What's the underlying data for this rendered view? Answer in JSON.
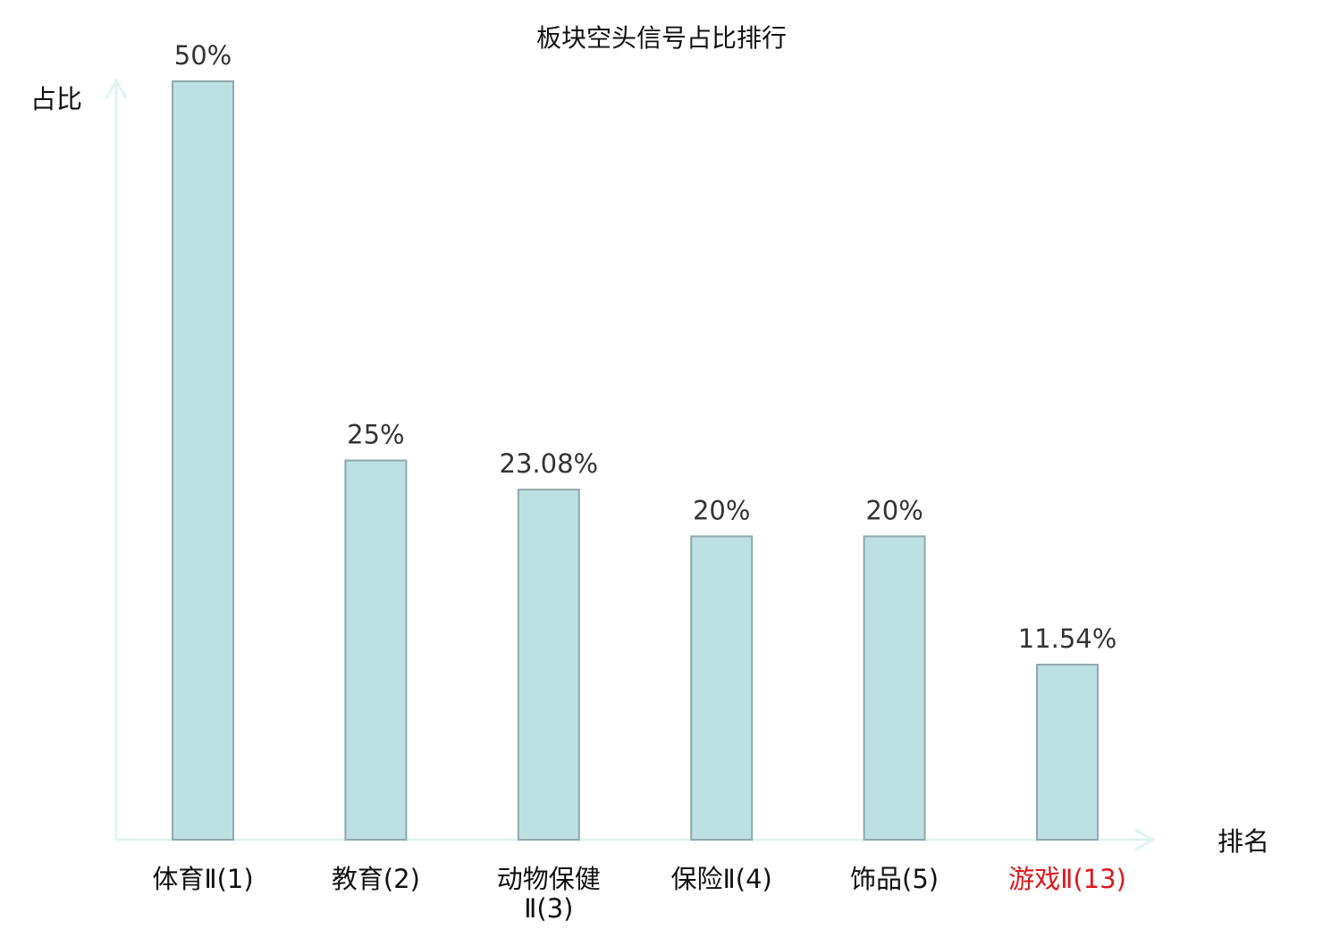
{
  "chart_data": {
    "type": "bar",
    "title": "板块空头信号占比排行",
    "xlabel": "排名",
    "ylabel": "占比",
    "categories": [
      {
        "parts": [
          "体育Ⅱ(1)"
        ],
        "highlight": false
      },
      {
        "parts": [
          "教育(2)"
        ],
        "highlight": false
      },
      {
        "parts": [
          "动物保健",
          "Ⅱ(3)"
        ],
        "highlight": false
      },
      {
        "parts": [
          "保险Ⅱ(4)"
        ],
        "highlight": false
      },
      {
        "parts": [
          "饰品(5)"
        ],
        "highlight": false
      },
      {
        "parts": [
          "游戏Ⅱ(13)"
        ],
        "highlight": true
      }
    ],
    "values": [
      50,
      25,
      23.08,
      20,
      20,
      11.54
    ],
    "value_labels": [
      "50%",
      "25%",
      "23.08%",
      "20%",
      "20%",
      "11.54%"
    ],
    "ylim": [
      0,
      50
    ],
    "grid": false,
    "colors": {
      "bar_fill": "#bde0e2",
      "bar_stroke": "#8fa9ab",
      "axis": "#e0f3f0",
      "text": "#111111",
      "value_text": "#333333",
      "highlight_text": "#e0161c"
    }
  }
}
